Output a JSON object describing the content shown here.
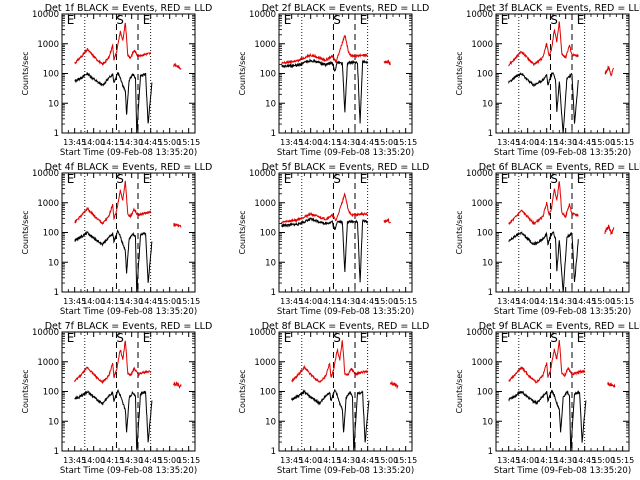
{
  "chart_data": {
    "type": "line",
    "layout": "3x3 grid",
    "x_ticks": [
      "13:45",
      "14:00",
      "14:15",
      "14:30",
      "14:45",
      "15:00",
      "15:15"
    ],
    "y_ticks": [
      "1",
      "10",
      "100",
      "1000",
      "10000"
    ],
    "y_scale": "log",
    "ylim": [
      1,
      10000
    ],
    "xlabel": "Start Time (09-Feb-08 13:35:20)",
    "ylabel": "Counts/sec",
    "marker_labels": [
      "E",
      "S",
      "E"
    ],
    "series_colors": {
      "events": "#000000",
      "lld": "#e00000"
    },
    "panels": [
      {
        "title": "Det 1f BLACK = Events, RED = LLD"
      },
      {
        "title": "Det 2f BLACK = Events, RED = LLD"
      },
      {
        "title": "Det 3f BLACK = Events, RED = LLD"
      },
      {
        "title": "Det 4f BLACK = Events, RED = LLD"
      },
      {
        "title": "Det 5f BLACK = Events, RED = LLD"
      },
      {
        "title": "Det 6f BLACK = Events, RED = LLD"
      },
      {
        "title": "Det 7f BLACK = Events, RED = LLD"
      },
      {
        "title": "Det 8f BLACK = Events, RED = LLD"
      },
      {
        "title": "Det 9f BLACK = Events, RED = LLD"
      }
    ]
  }
}
